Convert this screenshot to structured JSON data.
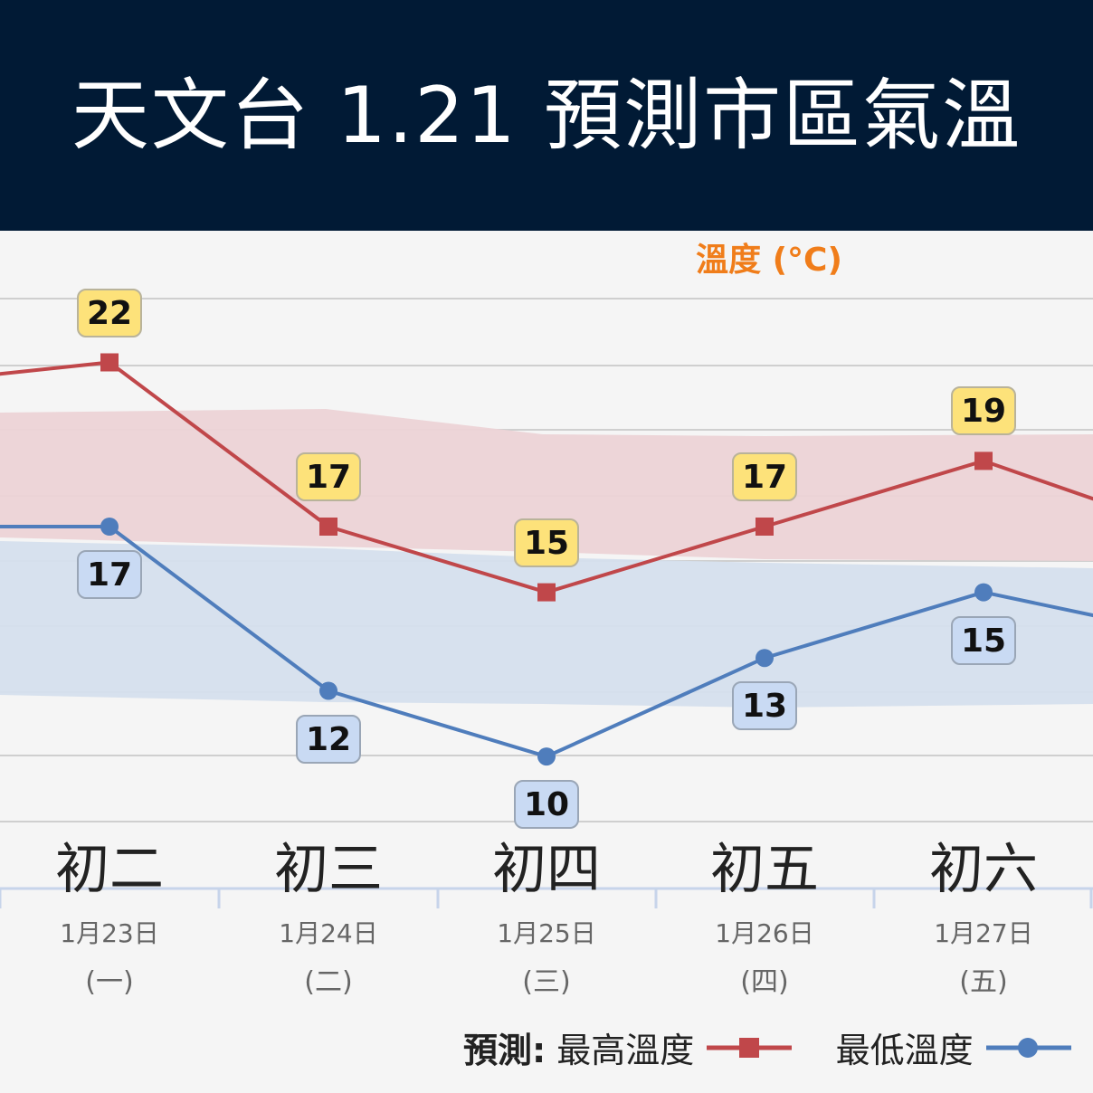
{
  "header": {
    "title": "天文台 1.21 預測市區氣溫"
  },
  "unit_label": "溫度 (°C)",
  "legend": {
    "prefix": "預測:",
    "max_label": "最高溫度",
    "min_label": "最低溫度"
  },
  "colors": {
    "header_bg": "#011a35",
    "max_line": "#c0474a",
    "min_line": "#4f7dbc",
    "max_band": "#ecd3d6",
    "min_band": "#d5dfed",
    "unit": "#f07d1a"
  },
  "chart_data": {
    "type": "line",
    "ylabel": "溫度 (°C)",
    "ylim": [
      9,
      25
    ],
    "grid": true,
    "legend_position": "bottom",
    "categories": [
      {
        "lunar": "初二",
        "date": "1月23日",
        "weekday": "(一)"
      },
      {
        "lunar": "初三",
        "date": "1月24日",
        "weekday": "(二)"
      },
      {
        "lunar": "初四",
        "date": "1月25日",
        "weekday": "(三)"
      },
      {
        "lunar": "初五",
        "date": "1月26日",
        "weekday": "(四)"
      },
      {
        "lunar": "初六",
        "date": "1月27日",
        "weekday": "(五)"
      }
    ],
    "series": [
      {
        "name": "最高溫度",
        "values": [
          22,
          17,
          15,
          17,
          19
        ],
        "color": "#c0474a"
      },
      {
        "name": "最低溫度",
        "values": [
          17,
          12,
          10,
          13,
          15
        ],
        "color": "#4f7dbc"
      }
    ]
  }
}
